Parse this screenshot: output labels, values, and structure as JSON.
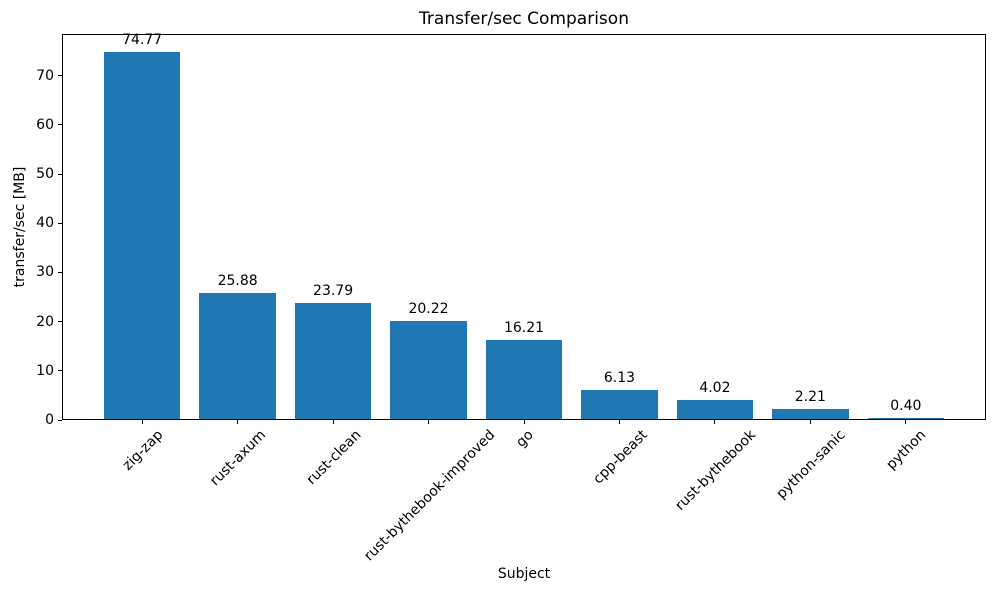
{
  "figure": {
    "background": "#ffffff",
    "text_color": "#000000"
  },
  "chart_data": {
    "type": "bar",
    "title": "Transfer/sec Comparison",
    "xlabel": "Subject",
    "ylabel": "transfer/sec [MB]",
    "categories": [
      "zig-zap",
      "rust-axum",
      "rust-clean",
      "rust-bythebook-improved",
      "go",
      "cpp-beast",
      "rust-bythebook",
      "python-sanic",
      "python"
    ],
    "values": [
      74.77,
      25.88,
      23.79,
      20.22,
      16.21,
      6.13,
      4.02,
      2.21,
      0.4
    ],
    "value_labels": [
      "74.77",
      "25.88",
      "23.79",
      "20.22",
      "16.21",
      "6.13",
      "4.02",
      "2.21",
      "0.40"
    ],
    "y_ticks": [
      0,
      10,
      20,
      30,
      40,
      50,
      60,
      70
    ],
    "ylim": [
      0,
      78.5
    ],
    "x_tick_rotation_deg": 45,
    "bar_color": "#1f77b4",
    "grid": false,
    "legend_position": "none"
  }
}
